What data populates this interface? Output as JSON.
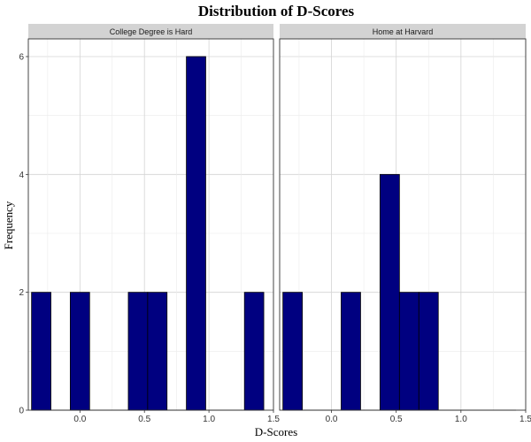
{
  "chart_data": {
    "type": "histogram",
    "title": "Distribution of D-Scores",
    "xlabel": "D-Scores",
    "ylabel": "Frequency",
    "xlim": [
      -0.4,
      1.5
    ],
    "ylim": [
      0,
      6.3
    ],
    "x_ticks": [
      "0.0",
      "0.5",
      "1.0",
      "1.5"
    ],
    "y_ticks": [
      "0",
      "2",
      "4",
      "6"
    ],
    "bin_width": 0.15,
    "colors": {
      "fill": "#000080",
      "stroke": "#000000",
      "grid": "#d4d4d4",
      "strip": "#d3d3d3"
    },
    "panels": [
      {
        "name": "College Degree is Hard",
        "bins": [
          {
            "x0": -0.375,
            "x1": -0.225,
            "count": 2
          },
          {
            "x0": -0.225,
            "x1": -0.075,
            "count": 0
          },
          {
            "x0": -0.075,
            "x1": 0.075,
            "count": 2
          },
          {
            "x0": 0.075,
            "x1": 0.225,
            "count": 0
          },
          {
            "x0": 0.225,
            "x1": 0.375,
            "count": 0
          },
          {
            "x0": 0.375,
            "x1": 0.525,
            "count": 2
          },
          {
            "x0": 0.525,
            "x1": 0.675,
            "count": 2
          },
          {
            "x0": 0.675,
            "x1": 0.825,
            "count": 0
          },
          {
            "x0": 0.825,
            "x1": 0.975,
            "count": 6
          },
          {
            "x0": 0.975,
            "x1": 1.125,
            "count": 0
          },
          {
            "x0": 1.125,
            "x1": 1.275,
            "count": 0
          },
          {
            "x0": 1.275,
            "x1": 1.425,
            "count": 2
          }
        ]
      },
      {
        "name": "Home at Harvard",
        "bins": [
          {
            "x0": -0.375,
            "x1": -0.225,
            "count": 2
          },
          {
            "x0": -0.225,
            "x1": -0.075,
            "count": 0
          },
          {
            "x0": -0.075,
            "x1": 0.075,
            "count": 0
          },
          {
            "x0": 0.075,
            "x1": 0.225,
            "count": 2
          },
          {
            "x0": 0.225,
            "x1": 0.375,
            "count": 0
          },
          {
            "x0": 0.375,
            "x1": 0.525,
            "count": 4
          },
          {
            "x0": 0.525,
            "x1": 0.675,
            "count": 2
          },
          {
            "x0": 0.675,
            "x1": 0.825,
            "count": 2
          },
          {
            "x0": 0.825,
            "x1": 0.975,
            "count": 0
          },
          {
            "x0": 0.975,
            "x1": 1.125,
            "count": 0
          },
          {
            "x0": 1.125,
            "x1": 1.275,
            "count": 0
          },
          {
            "x0": 1.275,
            "x1": 1.425,
            "count": 0
          }
        ]
      }
    ]
  }
}
